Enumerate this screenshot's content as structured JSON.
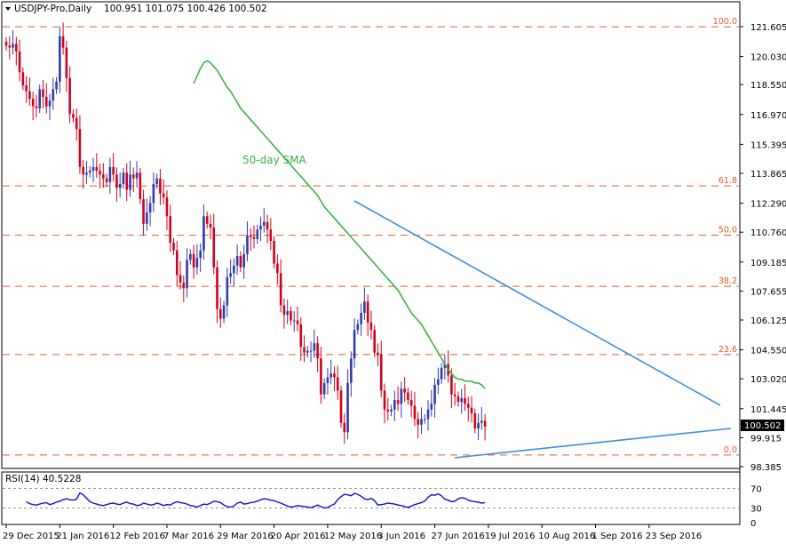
{
  "header": {
    "symbol_label": "USDJPY-Pro,Daily",
    "ohlc": "100.951 101.075 100.426 100.502"
  },
  "rsi_panel": {
    "label": "RSI(14) 40.5228",
    "levels": [
      "70",
      "30",
      "0"
    ],
    "levels_values": [
      70,
      30,
      0
    ],
    "ylim": [
      0,
      100
    ]
  },
  "annotations": {
    "sma_label": "50-day SMA"
  },
  "colors": {
    "bull": "#2f3bb0",
    "bear": "#d0021b",
    "sma": "#3cb043",
    "trendline": "#3f8fdd",
    "rsi": "#1010d8",
    "fib": "#e05a2b",
    "price_tag_bg": "#000000"
  },
  "chart_data": {
    "type": "candlestick",
    "ylim": [
      98.385,
      122.4
    ],
    "y_ticks": [
      "121.605",
      "120.030",
      "118.550",
      "116.970",
      "115.395",
      "113.865",
      "112.290",
      "110.760",
      "109.185",
      "107.655",
      "106.125",
      "104.550",
      "103.020",
      "101.445",
      "99.915",
      "98.385"
    ],
    "y_tick_values": [
      121.605,
      120.03,
      118.55,
      116.97,
      115.395,
      113.865,
      112.29,
      110.76,
      109.185,
      107.655,
      106.125,
      104.55,
      103.02,
      101.445,
      99.915,
      98.385
    ],
    "x_ticks": [
      "29 Dec 2015",
      "21 Jan 2016",
      "12 Feb 2016",
      "7 Mar 2016",
      "29 Mar 2016",
      "20 Apr 2016",
      "12 May 2016",
      "3 Jun 2016",
      "27 Jun 2016",
      "19 Jul 2016",
      "10 Aug 2016",
      "1 Sep 2016",
      "23 Sep 2016"
    ],
    "x_tick_bars": [
      0,
      16,
      32,
      48,
      64,
      80,
      96,
      112,
      128,
      144,
      160,
      176,
      192
    ],
    "current_price": "100.502",
    "current_price_value": 100.502,
    "fib_levels": [
      {
        "label": "100.0",
        "value": 121.6
      },
      {
        "label": "61.8",
        "value": 113.2
      },
      {
        "label": "50.0",
        "value": 110.6
      },
      {
        "label": "38.2",
        "value": 107.9
      },
      {
        "label": "23.6",
        "value": 104.3
      },
      {
        "label": "0.0",
        "value": 99.0
      }
    ],
    "close_series": [
      120.6,
      120.5,
      120.7,
      120.3,
      119.2,
      118.5,
      118.2,
      117.8,
      117.4,
      117.3,
      118.3,
      117.9,
      117.4,
      117.7,
      118.3,
      118.7,
      121.1,
      120.5,
      118.9,
      117.0,
      116.8,
      116.2,
      114.2,
      113.8,
      113.9,
      114.0,
      114.2,
      114.0,
      113.8,
      113.6,
      113.4,
      114.2,
      113.8,
      113.1,
      113.3,
      113.9,
      113.0,
      113.8,
      113.6,
      113.9,
      112.5,
      111.2,
      111.8,
      112.3,
      113.3,
      113.6,
      112.8,
      112.6,
      111.6,
      110.2,
      109.8,
      108.5,
      108.1,
      107.8,
      109.3,
      109.6,
      108.9,
      109.4,
      109.8,
      111.6,
      111.2,
      111.0,
      108.9,
      106.7,
      106.2,
      106.9,
      108.4,
      108.6,
      109.0,
      109.5,
      108.9,
      109.6,
      110.6,
      110.5,
      110.4,
      110.9,
      111.1,
      111.3,
      110.9,
      110.3,
      109.1,
      108.6,
      106.9,
      106.4,
      106.6,
      106.1,
      106.1,
      105.9,
      104.7,
      104.4,
      104.5,
      104.5,
      104.9,
      104.1,
      102.2,
      102.8,
      103.1,
      103.3,
      103.1,
      102.4,
      100.7,
      100.2,
      102.8,
      104.1,
      105.6,
      105.9,
      106.5,
      107.1,
      106.0,
      105.6,
      104.4,
      104.3,
      102.4,
      101.4,
      101.3,
      101.4,
      101.9,
      101.7,
      102.5,
      102.3,
      101.9,
      101.6,
      100.9,
      100.6,
      100.9,
      100.9,
      101.4,
      101.7,
      102.7,
      103.0,
      103.6,
      103.8,
      103.2,
      102.2,
      102.1,
      101.8,
      102.0,
      101.7,
      101.5,
      101.2,
      100.4,
      100.7,
      100.8,
      100.5
    ],
    "open_series_note": "",
    "sma_series": [
      118.6,
      119.0,
      119.4,
      119.7,
      119.8,
      119.7,
      119.5,
      119.3,
      119.0,
      118.7,
      118.4,
      118.2,
      117.9,
      117.6,
      117.3,
      117.1,
      116.9,
      116.7,
      116.5,
      116.3,
      116.1,
      115.9,
      115.7,
      115.5,
      115.3,
      115.1,
      114.9,
      114.7,
      114.5,
      114.3,
      114.1,
      113.9,
      113.7,
      113.5,
      113.3,
      113.1,
      112.9,
      112.7,
      112.4,
      112.1,
      111.9,
      111.7,
      111.5,
      111.3,
      111.1,
      110.9,
      110.7,
      110.5,
      110.3,
      110.1,
      109.9,
      109.7,
      109.5,
      109.3,
      109.1,
      108.9,
      108.7,
      108.5,
      108.3,
      108.1,
      107.9,
      107.7,
      107.4,
      107.1,
      106.8,
      106.5,
      106.3,
      106.1,
      105.9,
      105.6,
      105.3,
      105.0,
      104.7,
      104.4,
      104.1,
      103.8,
      103.5,
      103.3,
      103.1,
      103.0,
      103.0,
      102.9,
      102.9,
      102.9,
      102.8,
      102.8,
      102.7,
      102.5
    ],
    "rsi_series": [
      43,
      39,
      37,
      36,
      38,
      40,
      41,
      37,
      39,
      42,
      44,
      47,
      49,
      47,
      46,
      48,
      61,
      57,
      50,
      43,
      40,
      38,
      36,
      35,
      37,
      39,
      40,
      38,
      37,
      40,
      42,
      39,
      38,
      35,
      36,
      40,
      38,
      36,
      37,
      40,
      38,
      35,
      37,
      36,
      40,
      43,
      41,
      40,
      38,
      35,
      34,
      32,
      35,
      38,
      37,
      40,
      44,
      43,
      41,
      36,
      33,
      32,
      34,
      40,
      42,
      38,
      39,
      41,
      42,
      44,
      47,
      49,
      48,
      46,
      45,
      42,
      40,
      37,
      34,
      32,
      33,
      35,
      34,
      33,
      32,
      31,
      33,
      36,
      33,
      30,
      31,
      35,
      38,
      47,
      53,
      58,
      57,
      55,
      60,
      58,
      54,
      49,
      47,
      50,
      45,
      36,
      37,
      38,
      40,
      39,
      38,
      36,
      35,
      33,
      31,
      34,
      37,
      39,
      41,
      44,
      52,
      57,
      56,
      59,
      55,
      48,
      46,
      43,
      44,
      49,
      51,
      50,
      46,
      44,
      43,
      42,
      40,
      41
    ]
  }
}
